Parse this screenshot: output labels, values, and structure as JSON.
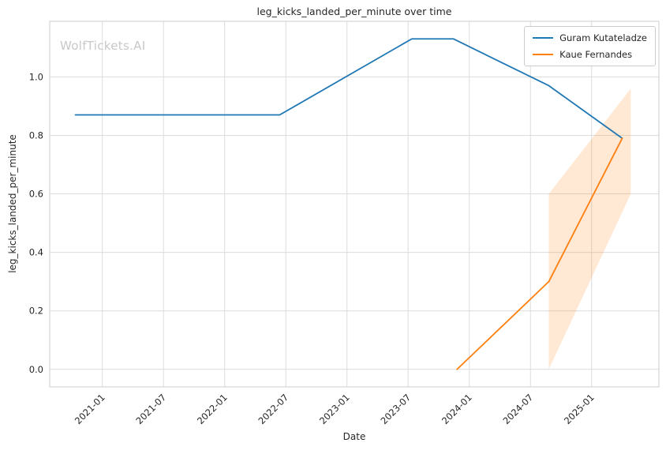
{
  "watermark": "WolfTickets.AI",
  "chart_data": {
    "type": "line",
    "title": "leg_kicks_landed_per_minute over time",
    "xlabel": "Date",
    "ylabel": "leg_kicks_landed_per_minute",
    "grid": true,
    "legend_position": "upper right",
    "xlim": [
      2020.57,
      2025.55
    ],
    "ylim": [
      -0.06,
      1.19
    ],
    "x_ticks": {
      "positions": [
        2021.0,
        2021.5,
        2022.0,
        2022.5,
        2023.0,
        2023.5,
        2024.0,
        2024.5,
        2025.0
      ],
      "labels": [
        "2021-01",
        "2021-07",
        "2022-01",
        "2022-07",
        "2023-01",
        "2023-07",
        "2024-01",
        "2024-07",
        "2025-01"
      ]
    },
    "y_ticks": {
      "positions": [
        0.0,
        0.2,
        0.4,
        0.6,
        0.8,
        1.0
      ],
      "labels": [
        "0.0",
        "0.2",
        "0.4",
        "0.6",
        "0.8",
        "1.0"
      ]
    },
    "series": [
      {
        "name": "Guram Kutateladze",
        "color": "#1f77b4",
        "x": [
          2020.78,
          2022.45,
          2023.53,
          2023.87,
          2024.65,
          2025.25
        ],
        "y": [
          0.87,
          0.87,
          1.13,
          1.13,
          0.97,
          0.79
        ]
      },
      {
        "name": "Kaue Fernandes",
        "color": "#ff7f0e",
        "x": [
          2023.9,
          2024.65,
          2025.25
        ],
        "y": [
          0.0,
          0.3,
          0.79
        ]
      }
    ],
    "confidence_band": {
      "series": "Kaue Fernandes",
      "color": "#ff7f0e",
      "opacity": 0.18,
      "x": [
        2024.65,
        2025.32
      ],
      "lower": [
        0.0,
        0.6
      ],
      "upper": [
        0.6,
        0.96
      ]
    }
  }
}
